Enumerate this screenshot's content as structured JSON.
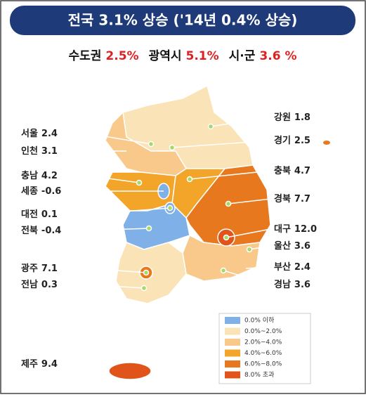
{
  "header": {
    "title": "전국 3.1% 상승 ('14년 0.4% 상승)"
  },
  "summary": [
    {
      "name": "수도권",
      "value": "2.5%"
    },
    {
      "name": "광역시",
      "value": "5.1%"
    },
    {
      "name": "시·군",
      "value": "3.6 %"
    }
  ],
  "regions": [
    {
      "name": "서울",
      "value": "2.4"
    },
    {
      "name": "인천",
      "value": "3.1"
    },
    {
      "name": "충남",
      "value": "4.2"
    },
    {
      "name": "세종",
      "value": "-0.6"
    },
    {
      "name": "대전",
      "value": "0.1"
    },
    {
      "name": "전북",
      "value": "-0.4"
    },
    {
      "name": "광주",
      "value": "7.1"
    },
    {
      "name": "전남",
      "value": "0.3"
    },
    {
      "name": "제주",
      "value": "9.4"
    },
    {
      "name": "강원",
      "value": "1.8"
    },
    {
      "name": "경기",
      "value": "2.5"
    },
    {
      "name": "충북",
      "value": "4.7"
    },
    {
      "name": "경북",
      "value": "7.7"
    },
    {
      "name": "대구",
      "value": "12.0"
    },
    {
      "name": "울산",
      "value": "3.6"
    },
    {
      "name": "부산",
      "value": "2.4"
    },
    {
      "name": "경남",
      "value": "3.6"
    }
  ],
  "legend": [
    {
      "label": "0.0% 이하",
      "color": "#7fb0e8"
    },
    {
      "label": "0.0%~2.0%",
      "color": "#fbe3b8"
    },
    {
      "label": "2.0%~4.0%",
      "color": "#f8c98a"
    },
    {
      "label": "4.0%~6.0%",
      "color": "#f3a52a"
    },
    {
      "label": "6.0%~8.0%",
      "color": "#e8781e"
    },
    {
      "label": "8.0% 초과",
      "color": "#e0541c"
    }
  ]
}
